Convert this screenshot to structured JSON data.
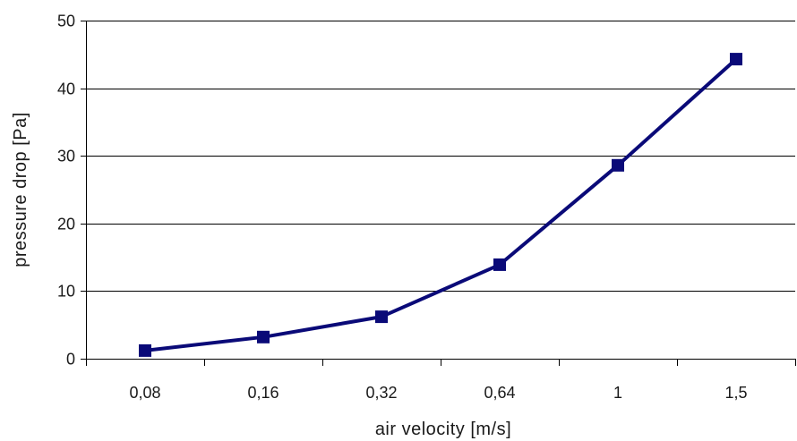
{
  "chart_data": {
    "type": "line",
    "categories": [
      "0,08",
      "0,16",
      "0,32",
      "0,64",
      "1",
      "1,5"
    ],
    "series": [
      {
        "values": [
          1.2,
          3.2,
          6.2,
          13.9,
          28.6,
          44.3
        ]
      }
    ],
    "xlabel": "air velocity  [m/s]",
    "ylabel": "pressure drop  [Pa]",
    "ylim": [
      0,
      50
    ],
    "yticks": [
      "0",
      "10",
      "20",
      "30",
      "40",
      "50"
    ],
    "grid": "horizontal",
    "legend": "none",
    "colors": {
      "series": "#0a0a78",
      "grid": "#000000",
      "axis": "#000000"
    }
  }
}
